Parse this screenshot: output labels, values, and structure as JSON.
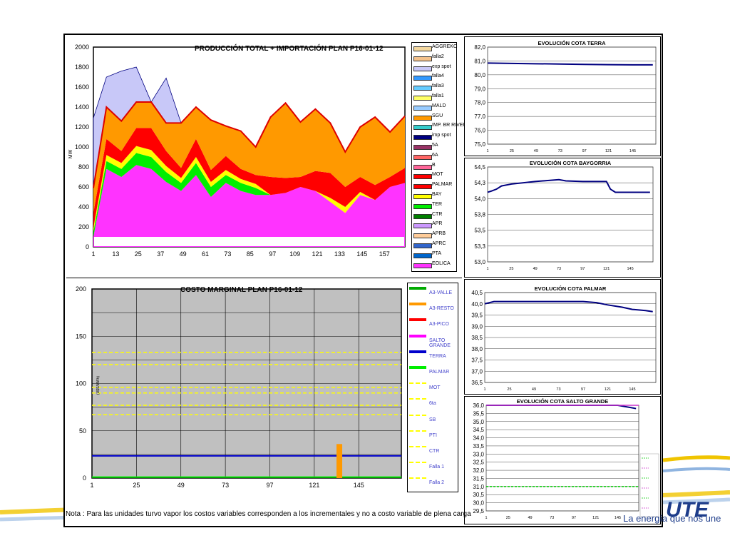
{
  "footer": {
    "nota": "Nota : Para las unidades turvo vapor los costos variables corresponden a los incrementales y no a costo variable de plena carga",
    "slogan": "La energía que nos une",
    "logo_text": "UTE"
  },
  "colors": {
    "eolica": "#ff33ff",
    "palmar": "#00ee00",
    "bay": "#ffff00",
    "mot": "#ff0000",
    "sgu": "#ff9900",
    "exp_spot": "#c8c8f8",
    "imp_spot": "#000080",
    "total_line": "#dd0000",
    "cota_line": "#000080",
    "plot_gray": "#c0c0c0"
  },
  "production": {
    "title": "PRODUCCIÓN TOTAL + IMPORTACIÓN PLAN    P16-01-12",
    "ylabel": "MW",
    "yticks": [
      "2000",
      "1800",
      "1600",
      "1400",
      "1200",
      "1000",
      "800",
      "600",
      "400",
      "200",
      "0"
    ],
    "xticks": [
      "1",
      "13",
      "25",
      "37",
      "49",
      "61",
      "73",
      "85",
      "97",
      "109",
      "121",
      "133",
      "145",
      "157"
    ],
    "legend": [
      {
        "label": "AGGREKO",
        "color": "#f4d8a0"
      },
      {
        "label": "falla2",
        "color": "#f4c28c"
      },
      {
        "label": "exp spot",
        "color": "#c8c8f8"
      },
      {
        "label": "falla4",
        "color": "#3399ff"
      },
      {
        "label": "falla3",
        "color": "#66ccff"
      },
      {
        "label": "falla1",
        "color": "#ffff66"
      },
      {
        "label": "MALD",
        "color": "#99ccff"
      },
      {
        "label": "SGU",
        "color": "#ff9900"
      },
      {
        "label": "IMP. BR RIVERA",
        "color": "#33cccc"
      },
      {
        "label": "imp spot",
        "color": "#000080"
      },
      {
        "label": "5A",
        "color": "#993366"
      },
      {
        "label": "6A",
        "color": "#ff6666"
      },
      {
        "label": "B",
        "color": "#ff6699"
      },
      {
        "label": "MOT",
        "color": "#ff0000"
      },
      {
        "label": "PALMAR",
        "color": "#ff0000"
      },
      {
        "label": "BAY",
        "color": "#ffff00"
      },
      {
        "label": "TER",
        "color": "#00ee00"
      },
      {
        "label": "CTR",
        "color": "#008000"
      },
      {
        "label": "APR",
        "color": "#cc99ff"
      },
      {
        "label": "APRB",
        "color": "#ffcc99"
      },
      {
        "label": "APRC",
        "color": "#3366cc"
      },
      {
        "label": "PTA",
        "color": "#0066cc"
      },
      {
        "label": "EOLICA",
        "color": "#ff33ff"
      }
    ]
  },
  "marginal": {
    "title": "COSTO MARGINAL PLAN    P16-01-12",
    "ylabel": "(U$S/MWh)",
    "yticks": [
      "200",
      "150",
      "100",
      "50",
      "0"
    ],
    "xticks": [
      "1",
      "25",
      "49",
      "73",
      "97",
      "121",
      "145"
    ],
    "legend": [
      {
        "label": "A3-VALLE",
        "color": "#00aa00",
        "style": "solid"
      },
      {
        "label": "A3-RESTO",
        "color": "#ff9900",
        "style": "solid"
      },
      {
        "label": "A3-PICO",
        "color": "#ff0000",
        "style": "solid"
      },
      {
        "label": "SALTO GRANDE",
        "color": "#ff00ff",
        "style": "solid"
      },
      {
        "label": "TERRA",
        "color": "#0000cc",
        "style": "solid"
      },
      {
        "label": "PALMAR",
        "color": "#00ee00",
        "style": "solid"
      },
      {
        "label": "MOT",
        "color": "#ffff00",
        "style": "dashed"
      },
      {
        "label": "6ta",
        "color": "#ffff00",
        "style": "dashed"
      },
      {
        "label": "SB",
        "color": "#ffff00",
        "style": "dashed"
      },
      {
        "label": "PTI",
        "color": "#ffff00",
        "style": "dashed"
      },
      {
        "label": "CTR",
        "color": "#ffff00",
        "style": "dashed"
      },
      {
        "label": "Falla 1",
        "color": "#ffff00",
        "style": "dashed"
      },
      {
        "label": "Falla 2",
        "color": "#ffff00",
        "style": "dashed"
      }
    ]
  },
  "cota_terra": {
    "title": "EVOLUCIÓN COTA TERRA",
    "yticks": [
      "82,0",
      "81,0",
      "80,0",
      "79,0",
      "78,0",
      "77,0",
      "76,0",
      "75,0"
    ],
    "xticks": [
      "1",
      "25",
      "49",
      "73",
      "97",
      "121",
      "145"
    ]
  },
  "cota_baygorria": {
    "title": "EVOLUCIÓN COTA BAYGORRIA",
    "yticks": [
      "54,5",
      "54,3",
      "54,0",
      "53,8",
      "53,5",
      "53,3",
      "53,0"
    ],
    "xticks": [
      "1",
      "25",
      "49",
      "73",
      "97",
      "121",
      "145"
    ]
  },
  "cota_palmar": {
    "title": "EVOLUCIÓN COTA PALMAR",
    "yticks": [
      "40,5",
      "40,0",
      "39,5",
      "39,0",
      "38,5",
      "38,0",
      "37,5",
      "37,0",
      "36,5"
    ],
    "xticks": [
      "1",
      "25",
      "49",
      "73",
      "97",
      "121",
      "145"
    ]
  },
  "cota_salto": {
    "title": "EVOLUCIÓN COTA SALTO GRANDE",
    "yticks": [
      "36,0",
      "35,5",
      "35,0",
      "34,5",
      "34,0",
      "33,5",
      "33,0",
      "32,5",
      "32,0",
      "31,5",
      "31,0",
      "30,5",
      "30,0",
      "29,5"
    ],
    "xticks": [
      "1",
      "25",
      "49",
      "73",
      "97",
      "121",
      "145"
    ]
  },
  "chart_data": [
    {
      "type": "area",
      "title": "PRODUCCIÓN TOTAL + IMPORTACIÓN PLAN    P16-01-12",
      "ylabel": "MW",
      "ylim": [
        0,
        2000
      ],
      "x": [
        1,
        8,
        16,
        24,
        32,
        40,
        48,
        56,
        64,
        72,
        80,
        88,
        96,
        104,
        112,
        120,
        128,
        136,
        144,
        152,
        160,
        168
      ],
      "series": [
        {
          "name": "EOLICA",
          "values": [
            100,
            780,
            700,
            820,
            780,
            650,
            560,
            720,
            500,
            640,
            560,
            520,
            520,
            540,
            600,
            560,
            450,
            340,
            520,
            470,
            600,
            640
          ]
        },
        {
          "name": "PALMAR",
          "values": [
            50,
            80,
            80,
            120,
            120,
            100,
            80,
            120,
            100,
            80,
            80,
            70,
            0,
            0,
            0,
            0,
            0,
            0,
            0,
            0,
            0,
            0
          ]
        },
        {
          "name": "BAY",
          "values": [
            40,
            60,
            60,
            70,
            70,
            60,
            50,
            60,
            50,
            50,
            40,
            40,
            0,
            0,
            0,
            0,
            40,
            60,
            30,
            0,
            0,
            0
          ]
        },
        {
          "name": "MOT",
          "values": [
            150,
            160,
            120,
            180,
            220,
            150,
            100,
            180,
            120,
            140,
            100,
            90,
            180,
            150,
            100,
            200,
            250,
            200,
            150,
            150,
            100,
            150
          ]
        },
        {
          "name": "SGU",
          "values": [
            250,
            320,
            300,
            260,
            260,
            280,
            450,
            320,
            500,
            300,
            380,
            280,
            600,
            750,
            550,
            620,
            500,
            350,
            500,
            680,
            450,
            520
          ]
        },
        {
          "name": "exp spot",
          "values": [
            700,
            300,
            500,
            350,
            0,
            450,
            0,
            0,
            0,
            0,
            0,
            0,
            0,
            0,
            0,
            0,
            0,
            0,
            0,
            0,
            0,
            0
          ]
        }
      ]
    },
    {
      "type": "line",
      "title": "COSTO MARGINAL PLAN    P16-01-12",
      "ylabel": "(U$S/MWh)",
      "ylim": [
        0,
        200
      ],
      "series": [
        {
          "name": "TERRA",
          "values": [
            23.5
          ]
        },
        {
          "name": "PALMAR",
          "values": [
            1
          ]
        },
        {
          "name": "MOT",
          "values": [
            133
          ]
        },
        {
          "name": "6ta",
          "values": [
            120
          ]
        },
        {
          "name": "SB",
          "values": [
            96
          ]
        },
        {
          "name": "PTI",
          "values": [
            90
          ]
        },
        {
          "name": "CTR",
          "values": [
            77
          ]
        },
        {
          "name": "Falla 1",
          "values": [
            67
          ]
        },
        {
          "name": "A3-RESTO",
          "values": [
            36
          ]
        }
      ]
    },
    {
      "type": "line",
      "title": "EVOLUCIÓN COTA TERRA",
      "ylim": [
        75,
        82
      ],
      "x": [
        1,
        25,
        49,
        73,
        97,
        121,
        145,
        165
      ],
      "values": [
        80.85,
        80.82,
        80.8,
        80.78,
        80.75,
        80.73,
        80.72,
        80.72
      ]
    },
    {
      "type": "line",
      "title": "EVOLUCIÓN COTA BAYGORRIA",
      "ylim": [
        53,
        54.5
      ],
      "x": [
        1,
        5,
        10,
        15,
        25,
        49,
        73,
        80,
        97,
        121,
        125,
        130,
        145,
        165
      ],
      "values": [
        54.1,
        54.12,
        54.15,
        54.2,
        54.23,
        54.27,
        54.3,
        54.28,
        54.27,
        54.27,
        54.15,
        54.1,
        54.1,
        54.1
      ]
    },
    {
      "type": "line",
      "title": "EVOLUCIÓN COTA PALMAR",
      "ylim": [
        36.5,
        40.5
      ],
      "x": [
        1,
        10,
        25,
        49,
        73,
        97,
        110,
        121,
        135,
        145,
        158,
        165
      ],
      "values": [
        40.0,
        40.1,
        40.1,
        40.1,
        40.1,
        40.1,
        40.05,
        39.95,
        39.85,
        39.75,
        39.7,
        39.65
      ]
    },
    {
      "type": "line",
      "title": "EVOLUCIÓN COTA SALTO GRANDE",
      "ylim": [
        29.5,
        36
      ],
      "x": [
        1,
        25,
        49,
        73,
        97,
        121,
        145,
        165
      ],
      "values": [
        36.0,
        36.0,
        36.0,
        36.0,
        36.0,
        36.0,
        36.0,
        35.8
      ]
    }
  ]
}
